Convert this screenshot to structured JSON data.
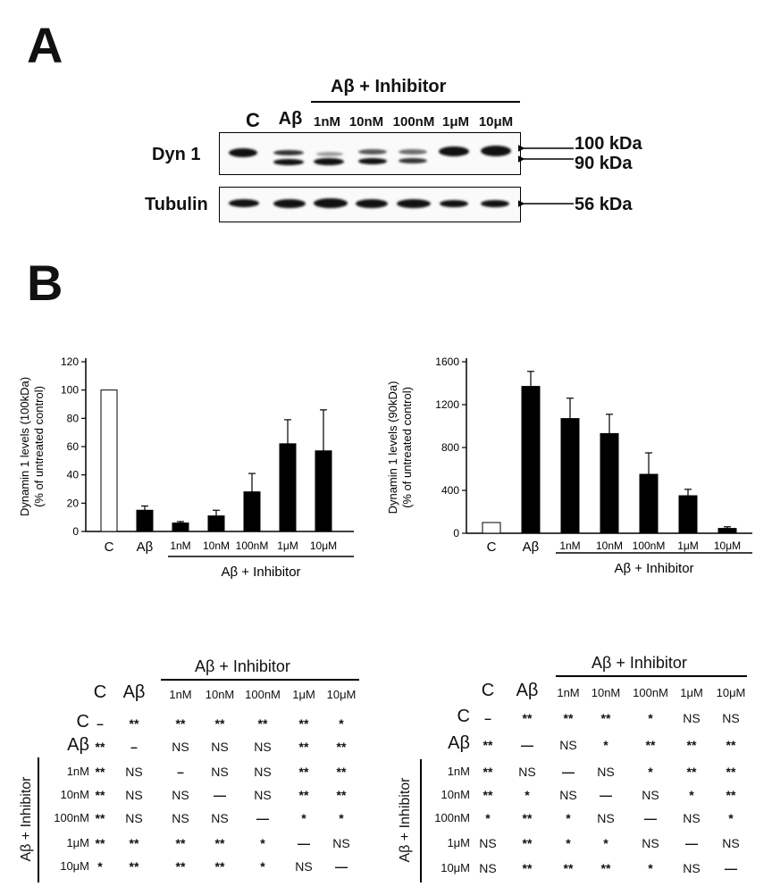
{
  "panelA": {
    "letter": "A",
    "group_label": "Aβ + Inhibitor",
    "lanes": [
      "C",
      "Aβ",
      "1nM",
      "10nM",
      "100nM",
      "1μM",
      "10μM"
    ],
    "blots": [
      {
        "label": "Dyn 1",
        "markers": [
          "100 kDa",
          "90 kDa"
        ]
      },
      {
        "label": "Tubulin",
        "markers": [
          "56 kDa"
        ]
      }
    ]
  },
  "panelB": {
    "letter": "B",
    "group_label": "Aβ + Inhibitor"
  },
  "chart_data": [
    {
      "type": "bar",
      "categories": [
        "C",
        "Aβ",
        "1nM",
        "10nM",
        "100nM",
        "1μM",
        "10μM"
      ],
      "values": [
        100,
        15,
        6,
        11,
        28,
        62,
        57
      ],
      "errors": [
        0,
        3,
        1,
        4,
        13,
        17,
        29
      ],
      "bar_colors": [
        "#ffffff",
        "#000000",
        "#000000",
        "#000000",
        "#000000",
        "#000000",
        "#000000"
      ],
      "ylabel": "Dynamin 1 levels (100kDa)",
      "ylabel2": "(% of untreated control)",
      "yticks": [
        "0",
        "20",
        "40",
        "60",
        "80",
        "100",
        "120"
      ],
      "ylim": [
        0,
        120
      ],
      "group_label": "Aβ + Inhibitor"
    },
    {
      "type": "bar",
      "categories": [
        "C",
        "Aβ",
        "1nM",
        "10nM",
        "100nM",
        "1μM",
        "10μM"
      ],
      "values": [
        100,
        1370,
        1070,
        930,
        550,
        350,
        45
      ],
      "errors": [
        0,
        140,
        190,
        180,
        200,
        60,
        15
      ],
      "bar_colors": [
        "#ffffff",
        "#000000",
        "#000000",
        "#000000",
        "#000000",
        "#000000",
        "#000000"
      ],
      "ylabel": "Dynamin 1 levels (90kDa)",
      "ylabel2": "(% of untreated control)",
      "yticks": [
        "0",
        "400",
        "800",
        "1200",
        "1600"
      ],
      "ylim": [
        0,
        1600
      ],
      "group_label": "Aβ + Inhibitor"
    }
  ],
  "tables": [
    {
      "group_label": "Aβ + Inhibitor",
      "side_label": "Aβ + Inhibitor",
      "col_headers": [
        "C",
        "Aβ",
        "1nM",
        "10nM",
        "100nM",
        "1μM",
        "10μM"
      ],
      "row_headers": [
        "C",
        "Aβ",
        "1nM",
        "10nM",
        "100nM",
        "1μM",
        "10μM"
      ],
      "rows": [
        [
          "–",
          "**",
          "**",
          "**",
          "**",
          "**",
          "*"
        ],
        [
          "**",
          "–",
          "NS",
          "NS",
          "NS",
          "**",
          "**"
        ],
        [
          "**",
          "NS",
          "–",
          "NS",
          "NS",
          "**",
          "**"
        ],
        [
          "**",
          "NS",
          "NS",
          "—",
          "NS",
          "**",
          "**"
        ],
        [
          "**",
          "NS",
          "NS",
          "NS",
          "—",
          "*",
          "*"
        ],
        [
          "**",
          "**",
          "**",
          "**",
          "*",
          "—",
          "NS"
        ],
        [
          "*",
          "**",
          "**",
          "**",
          "*",
          "NS",
          "—"
        ]
      ]
    },
    {
      "group_label": "Aβ + Inhibitor",
      "side_label": "Aβ + Inhibitor",
      "col_headers": [
        "C",
        "Aβ",
        "1nM",
        "10nM",
        "100nM",
        "1μM",
        "10μM"
      ],
      "row_headers": [
        "C",
        "Aβ",
        "1nM",
        "10nM",
        "100nM",
        "1μM",
        "10μM"
      ],
      "rows": [
        [
          "–",
          "**",
          "**",
          "**",
          "*",
          "NS",
          "NS"
        ],
        [
          "**",
          "—",
          "NS",
          "*",
          "**",
          "**",
          "**"
        ],
        [
          "**",
          "NS",
          "—",
          "NS",
          "*",
          "**",
          "**"
        ],
        [
          "**",
          "*",
          "NS",
          "—",
          "NS",
          "*",
          "**"
        ],
        [
          "*",
          "**",
          "*",
          "NS",
          "—",
          "NS",
          "*"
        ],
        [
          "NS",
          "**",
          "*",
          "*",
          "NS",
          "—",
          "NS"
        ],
        [
          "NS",
          "**",
          "**",
          "**",
          "*",
          "NS",
          "—"
        ]
      ]
    }
  ]
}
